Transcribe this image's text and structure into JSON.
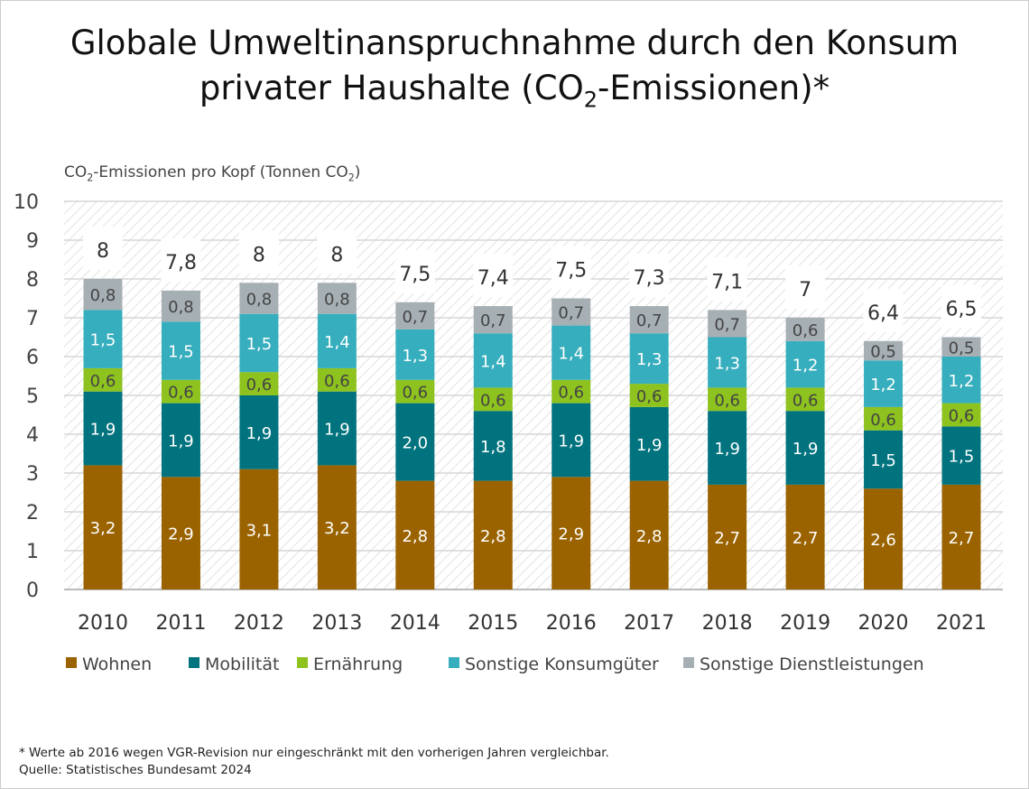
{
  "title_line1": "Globale Umweltinanspruchnahme durch den Konsum",
  "title_line2_pre": "privater Haushalte (CO",
  "title_line2_sub": "2",
  "title_line2_post": "-Emissionen)*",
  "footnote": "* Werte ab 2016 wegen VGR-Revision nur eingeschränkt mit den vorherigen Jahren vergleichbar.",
  "source": "Quelle: Statistisches Bundesamt 2024",
  "chart_data": {
    "type": "bar",
    "stacked": true,
    "ylabel_pre": "CO",
    "ylabel_sub": "2",
    "ylabel_mid": "-Emissionen pro Kopf (Tonnen CO",
    "ylabel_sub2": "2",
    "ylabel_post": ")",
    "ylim": [
      0,
      10
    ],
    "yticks": [
      "0",
      "1",
      "2",
      "3",
      "4",
      "5",
      "6",
      "7",
      "8",
      "9",
      "10"
    ],
    "grid": true,
    "legend_placement": "bottom",
    "categories": [
      "2010",
      "2011",
      "2012",
      "2013",
      "2014",
      "2015",
      "2016",
      "2017",
      "2018",
      "2019",
      "2020",
      "2021"
    ],
    "totals": [
      "8",
      "7,8",
      "8",
      "8",
      "7,5",
      "7,4",
      "7,5",
      "7,3",
      "7,1",
      "7",
      "6,4",
      "6,5"
    ],
    "series": [
      {
        "name": "Wohnen",
        "color": "#9a6300",
        "values": [
          3.2,
          2.9,
          3.1,
          3.2,
          2.8,
          2.8,
          2.9,
          2.8,
          2.7,
          2.7,
          2.6,
          2.7
        ]
      },
      {
        "name": "Mobilität",
        "color": "#00737e",
        "values": [
          1.9,
          1.9,
          1.9,
          1.9,
          2.0,
          1.8,
          1.9,
          1.9,
          1.9,
          1.9,
          1.5,
          1.5
        ]
      },
      {
        "name": "Ernährung",
        "color": "#8dc21f",
        "values": [
          0.6,
          0.6,
          0.6,
          0.6,
          0.6,
          0.6,
          0.6,
          0.6,
          0.6,
          0.6,
          0.6,
          0.6
        ]
      },
      {
        "name": "Sonstige Konsumgüter",
        "color": "#36aebd",
        "values": [
          1.5,
          1.5,
          1.5,
          1.4,
          1.3,
          1.4,
          1.4,
          1.3,
          1.3,
          1.2,
          1.2,
          1.2
        ]
      },
      {
        "name": "Sonstige Dienstleistungen",
        "color": "#a6afb4",
        "values": [
          0.8,
          0.8,
          0.8,
          0.8,
          0.7,
          0.7,
          0.7,
          0.7,
          0.7,
          0.6,
          0.5,
          0.5
        ]
      }
    ]
  }
}
